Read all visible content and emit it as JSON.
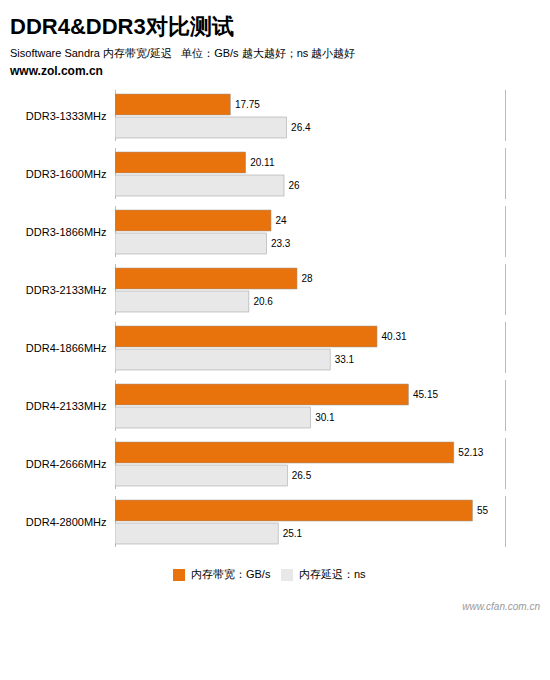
{
  "chart_data": {
    "type": "bar",
    "orientation": "horizontal",
    "title": "DDR4&DDR3对比测试",
    "subtitle": "Sisoftware Sandra 内存带宽/延迟   单位：GB/s 越大越好；ns 越小越好",
    "annotations": [
      "www.zol.com.cn",
      "www.cfan.com.cn"
    ],
    "categories": [
      "DDR3-1333MHz",
      "DDR3-1600MHz",
      "DDR3-1866MHz",
      "DDR3-2133MHz",
      "DDR4-1866MHz",
      "DDR4-2133MHz",
      "DDR4-2666MHz",
      "DDR4-2800MHz"
    ],
    "series": [
      {
        "name": "内存带宽：GB/s",
        "color": "#E8720C",
        "values": [
          17.75,
          20.11,
          24,
          28,
          40.31,
          45.15,
          52.13,
          55
        ]
      },
      {
        "name": "内存延迟：ns",
        "color": "#E8E8E8",
        "values": [
          26.4,
          26,
          23.3,
          20.6,
          33.1,
          30.1,
          26.5,
          25.1
        ]
      }
    ],
    "xlim": [
      0,
      60
    ],
    "tick_labels": "y",
    "data_labels": true,
    "legend": "bottom",
    "grid": false
  }
}
